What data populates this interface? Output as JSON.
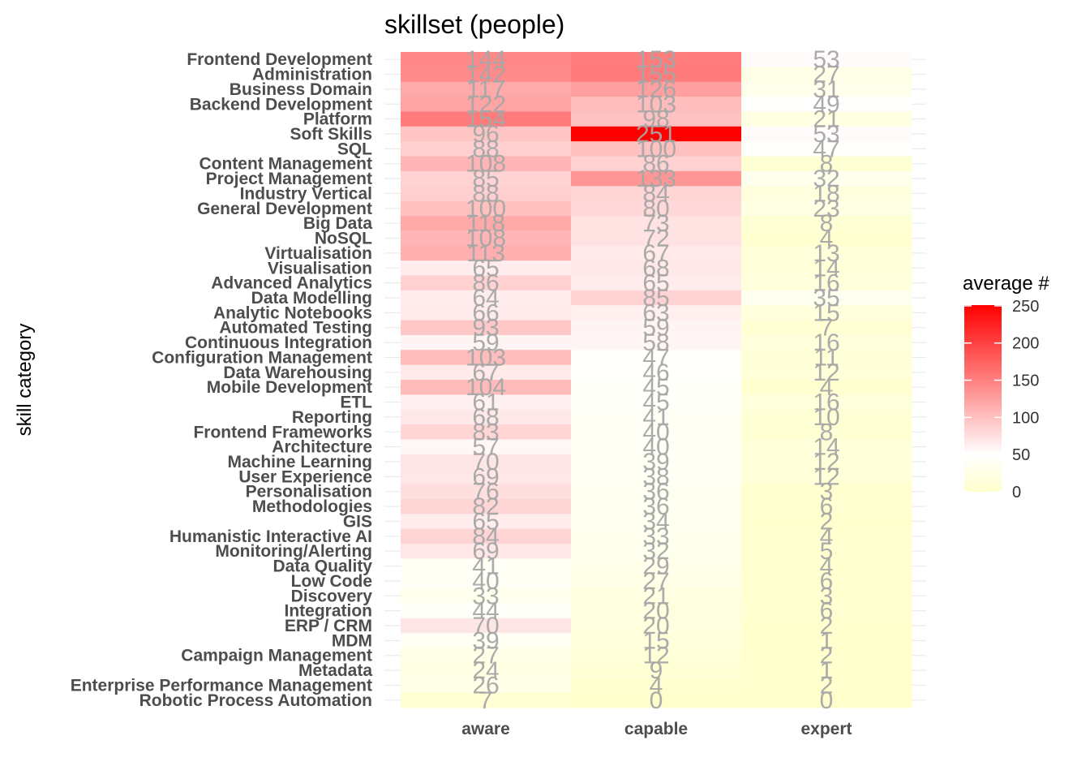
{
  "chart_data": {
    "type": "heatmap",
    "title": "skillset (people)",
    "xlabel": "",
    "ylabel": "skill category",
    "x": [
      "aware",
      "capable",
      "expert"
    ],
    "y": [
      "Frontend Development",
      "Administration",
      "Business Domain",
      "Backend Development",
      "Platform",
      "Soft Skills",
      "SQL",
      "Content Management",
      "Project Management",
      "Industry Vertical",
      "General Development",
      "Big Data",
      "NoSQL",
      "Virtualisation",
      "Visualisation",
      "Advanced Analytics",
      "Data Modelling",
      "Analytic Notebooks",
      "Automated Testing",
      "Continuous Integration",
      "Configuration Management",
      "Data Warehousing",
      "Mobile Development",
      "ETL",
      "Reporting",
      "Frontend Frameworks",
      "Architecture",
      "Machine Learning",
      "User Experience",
      "Personalisation",
      "Methodologies",
      "GIS",
      "Humanistic Interactive AI",
      "Monitoring/Alerting",
      "Data Quality",
      "Low Code",
      "Discovery",
      "Integration",
      "ERP / CRM",
      "MDM",
      "Campaign Management",
      "Metadata",
      "Enterprise Performance Management",
      "Robotic Process Automation"
    ],
    "values": [
      [
        144,
        153,
        53
      ],
      [
        142,
        155,
        27
      ],
      [
        117,
        126,
        31
      ],
      [
        122,
        103,
        49
      ],
      [
        154,
        98,
        21
      ],
      [
        96,
        251,
        53
      ],
      [
        88,
        100,
        47
      ],
      [
        108,
        86,
        8
      ],
      [
        85,
        133,
        32
      ],
      [
        88,
        84,
        18
      ],
      [
        100,
        80,
        23
      ],
      [
        118,
        73,
        8
      ],
      [
        108,
        72,
        4
      ],
      [
        113,
        67,
        13
      ],
      [
        65,
        68,
        14
      ],
      [
        86,
        65,
        16
      ],
      [
        64,
        85,
        35
      ],
      [
        66,
        63,
        15
      ],
      [
        93,
        59,
        7
      ],
      [
        59,
        58,
        16
      ],
      [
        103,
        47,
        11
      ],
      [
        67,
        46,
        12
      ],
      [
        104,
        45,
        4
      ],
      [
        61,
        45,
        16
      ],
      [
        68,
        41,
        10
      ],
      [
        83,
        40,
        8
      ],
      [
        57,
        40,
        14
      ],
      [
        70,
        39,
        12
      ],
      [
        69,
        38,
        12
      ],
      [
        76,
        36,
        3
      ],
      [
        82,
        36,
        6
      ],
      [
        65,
        34,
        2
      ],
      [
        84,
        33,
        4
      ],
      [
        69,
        32,
        5
      ],
      [
        41,
        29,
        4
      ],
      [
        40,
        27,
        6
      ],
      [
        33,
        21,
        3
      ],
      [
        44,
        20,
        6
      ],
      [
        70,
        20,
        2
      ],
      [
        39,
        15,
        1
      ],
      [
        27,
        12,
        2
      ],
      [
        24,
        9,
        1
      ],
      [
        26,
        4,
        2
      ],
      [
        7,
        0,
        0
      ]
    ],
    "legend": {
      "title": "average #",
      "position": "right",
      "ticks": [
        0,
        50,
        100,
        150,
        200,
        250
      ],
      "tick_labels": [
        "0",
        "50",
        "100",
        "150",
        "200",
        "250"
      ],
      "limits": [
        0,
        251
      ],
      "colors": {
        "low": "#ffffcc",
        "mid": "#ffffff",
        "high": "#ff0000"
      },
      "midpoint_value": 50
    },
    "grid": true
  }
}
